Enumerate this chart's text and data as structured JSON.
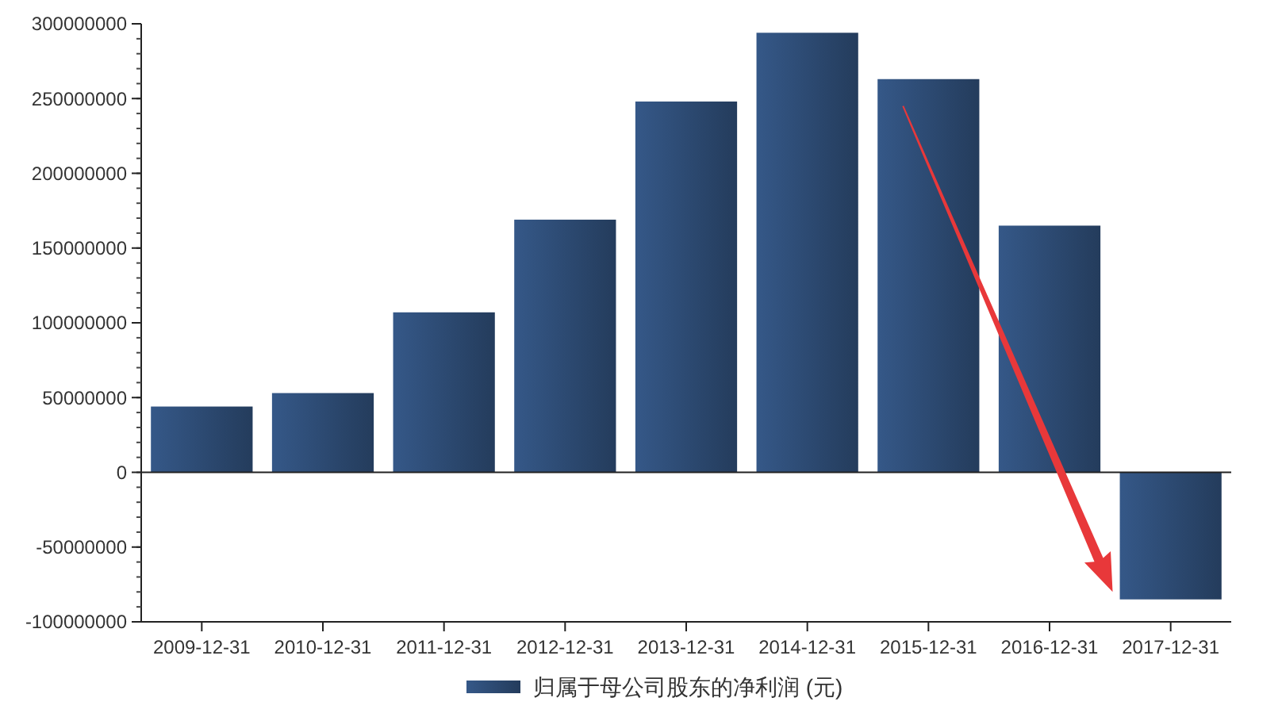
{
  "chart_data": {
    "type": "bar",
    "categories": [
      "2009-12-31",
      "2010-12-31",
      "2011-12-31",
      "2012-12-31",
      "2013-12-31",
      "2014-12-31",
      "2015-12-31",
      "2016-12-31",
      "2017-12-31"
    ],
    "series": [
      {
        "name": "归属于母公司股东的净利润 (元)",
        "color": "#2c4a72",
        "values": [
          44000000,
          53000000,
          107000000,
          169000000,
          248000000,
          294000000,
          263000000,
          165000000,
          -85000000
        ]
      }
    ],
    "ylim": [
      -100000000,
      300000000
    ],
    "yticks": [
      -100000000,
      -50000000,
      0,
      50000000,
      100000000,
      150000000,
      200000000,
      250000000,
      300000000
    ],
    "legend": "bottom"
  }
}
